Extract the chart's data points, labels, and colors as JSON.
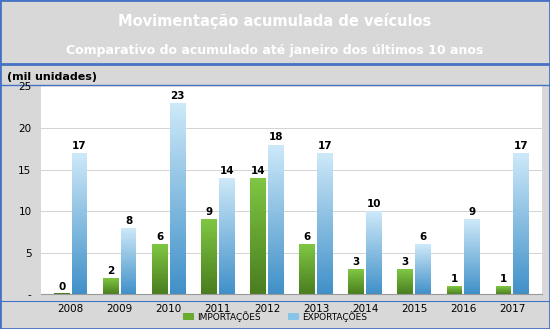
{
  "title_line1": "Movimentação acumulada de veículos",
  "title_line2": "Comparativo do acumulado até janeiro dos últimos 10 anos",
  "ylabel_unit": "(mil unidades)",
  "years": [
    2008,
    2009,
    2010,
    2011,
    2012,
    2013,
    2014,
    2015,
    2016,
    2017
  ],
  "importacoes": [
    0,
    2,
    6,
    9,
    14,
    6,
    3,
    3,
    1,
    1
  ],
  "exportacoes": [
    17,
    8,
    23,
    14,
    18,
    17,
    10,
    6,
    9,
    17
  ],
  "import_color_top": "#7ec642",
  "import_color_bot": "#4a7c1f",
  "export_color_top": "#cce8f8",
  "export_color_bot": "#4090c8",
  "title_bg": "#2e5090",
  "title_fg": "#ffffff",
  "border_color": "#4472c4",
  "plot_bg": "#ffffff",
  "fig_bg": "#d8d8d8",
  "ylim": [
    0,
    25
  ],
  "yticks": [
    0,
    5,
    10,
    15,
    20,
    25
  ],
  "legend_import": "IMPORTAÇÕES",
  "legend_export": "EXPORTAÇÕES",
  "bar_width": 0.32,
  "bar_gap": 0.04,
  "label_fontsize": 7.5,
  "axis_label_fontsize": 7.5,
  "legend_fontsize": 6.5
}
